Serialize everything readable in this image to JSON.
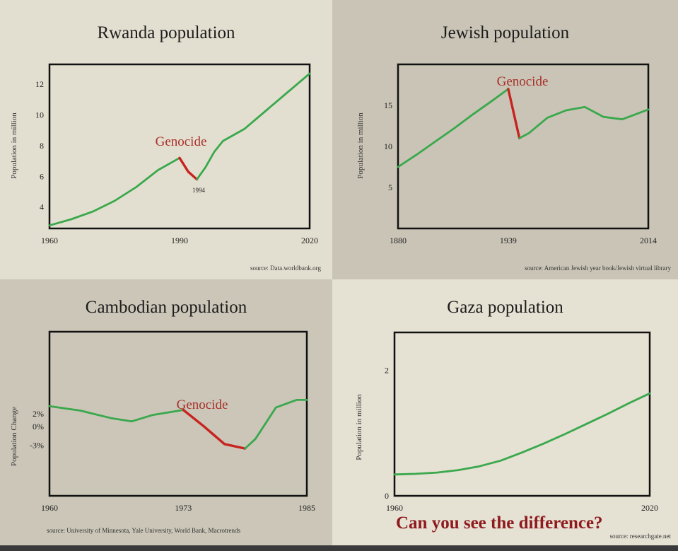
{
  "colors": {
    "line": "#3aa84c",
    "genocide_line": "#c8231f",
    "genocide_text": "#a8302a",
    "caption": "#8e1a1e",
    "frame": "#111111"
  },
  "caption": "Can you see the difference?",
  "chart_data": [
    {
      "type": "line",
      "title": "Rwanda population",
      "ylabel": "Population in million",
      "xlim": [
        1960,
        2020
      ],
      "ylim": [
        2.6,
        13.3
      ],
      "xticks": [
        1960,
        1990,
        2020
      ],
      "yticks": [
        4,
        6,
        8,
        10,
        12
      ],
      "series": [
        {
          "x": [
            1960,
            1965,
            1970,
            1975,
            1980,
            1985,
            1990
          ],
          "y": [
            2.8,
            3.2,
            3.7,
            4.4,
            5.3,
            6.4,
            7.2
          ]
        },
        {
          "x": [
            1990,
            1992,
            1994
          ],
          "y": [
            7.2,
            6.3,
            5.8
          ]
        },
        {
          "x": [
            1994,
            1996,
            1998,
            2000,
            2005,
            2010,
            2015,
            2020
          ],
          "y": [
            5.8,
            6.6,
            7.6,
            8.3,
            9.1,
            10.3,
            11.5,
            12.7
          ]
        }
      ],
      "annotation": "Genocide",
      "point_label": "1994",
      "source": "source: Data.worldbank.org"
    },
    {
      "type": "line",
      "title": "Jewish population",
      "ylabel": "Population in million",
      "xlim": [
        1880,
        2014
      ],
      "ylim": [
        0,
        20
      ],
      "xticks": [
        1880,
        1939,
        2014
      ],
      "yticks": [
        5,
        10,
        15
      ],
      "series": [
        {
          "x": [
            1880,
            1890,
            1900,
            1910,
            1920,
            1930,
            1939
          ],
          "y": [
            7.5,
            9.0,
            10.6,
            12.2,
            13.9,
            15.5,
            17.0
          ]
        },
        {
          "x": [
            1939,
            1942,
            1945
          ],
          "y": [
            17.0,
            14.0,
            11.0
          ]
        },
        {
          "x": [
            1945,
            1950,
            1960,
            1970,
            1980,
            1990,
            2000,
            2014
          ],
          "y": [
            11.0,
            11.6,
            13.5,
            14.4,
            14.8,
            13.6,
            13.3,
            14.5
          ]
        }
      ],
      "annotation": "Genocide",
      "source": "source: American Jewish year book/Jewish virtual library"
    },
    {
      "type": "line",
      "title": "Cambodian population",
      "ylabel": "Population Change",
      "xlim": [
        1960,
        1985
      ],
      "ylim": [
        -11,
        15
      ],
      "xticks": [
        1960,
        1973,
        1985
      ],
      "ytick_labels": [
        "2%",
        "0%",
        "-3%"
      ],
      "yticks": [
        2,
        0,
        -3
      ],
      "series": [
        {
          "x": [
            1960,
            1963,
            1966,
            1968,
            1970,
            1973
          ],
          "y": [
            3.2,
            2.5,
            1.3,
            0.8,
            1.8,
            2.6
          ]
        },
        {
          "x": [
            1973,
            1975,
            1977,
            1979
          ],
          "y": [
            2.6,
            0.0,
            -2.8,
            -3.5
          ]
        },
        {
          "x": [
            1979,
            1980,
            1982,
            1984,
            1985
          ],
          "y": [
            -3.5,
            -2.0,
            3.0,
            4.2,
            4.2
          ]
        }
      ],
      "annotation": "Genocide",
      "source": "source: University of Minnesota, Yale University, World Bank, Macrotrends"
    },
    {
      "type": "line",
      "title": "Gaza population",
      "ylabel": "Population in million",
      "xlim": [
        1960,
        2020
      ],
      "ylim": [
        0,
        2.6
      ],
      "xticks": [
        1960,
        2020
      ],
      "yticks": [
        0,
        2
      ],
      "series": [
        {
          "x": [
            1960,
            1965,
            1970,
            1975,
            1980,
            1985,
            1990,
            1995,
            2000,
            2005,
            2010,
            2015,
            2020
          ],
          "y": [
            0.34,
            0.35,
            0.37,
            0.41,
            0.47,
            0.56,
            0.69,
            0.83,
            0.98,
            1.14,
            1.3,
            1.47,
            1.63
          ]
        }
      ],
      "source": "source: researchgate.net"
    }
  ]
}
